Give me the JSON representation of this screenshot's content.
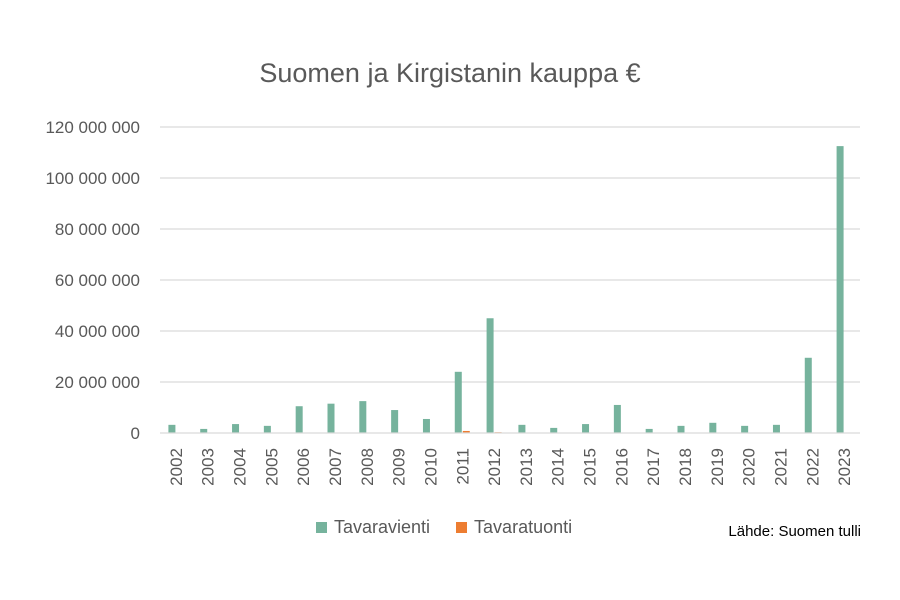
{
  "chart_data": {
    "type": "bar",
    "title": "Suomen ja Kirgistanin kauppa €",
    "categories": [
      "2002",
      "2003",
      "2004",
      "2005",
      "2006",
      "2007",
      "2008",
      "2009",
      "2010",
      "2011",
      "2012",
      "2013",
      "2014",
      "2015",
      "2016",
      "2017",
      "2018",
      "2019",
      "2020",
      "2021",
      "2022",
      "2023"
    ],
    "series": [
      {
        "name": "Tavaravienti",
        "color": "#76b39d",
        "values": [
          3200000,
          1600000,
          3500000,
          2800000,
          10500000,
          11500000,
          12500000,
          9000000,
          5500000,
          24000000,
          45000000,
          3200000,
          2000000,
          3500000,
          11000000,
          1600000,
          2800000,
          4000000,
          2800000,
          3200000,
          29500000,
          112500000
        ]
      },
      {
        "name": "Tavaratuonti",
        "color": "#ed7d31",
        "values": [
          0,
          0,
          0,
          0,
          0,
          0,
          0,
          0,
          150000,
          800000,
          300000,
          0,
          100000,
          100000,
          0,
          0,
          0,
          0,
          0,
          0,
          0,
          0
        ]
      }
    ],
    "yticks": [
      "0",
      "20 000 000",
      "40 000 000",
      "60 000 000",
      "80 000 000",
      "100 000 000",
      "120 000 000"
    ],
    "ylim": [
      0,
      120000000
    ],
    "grid": true,
    "legend_position": "bottom"
  },
  "source_note": "Lähde: Suomen tulli"
}
